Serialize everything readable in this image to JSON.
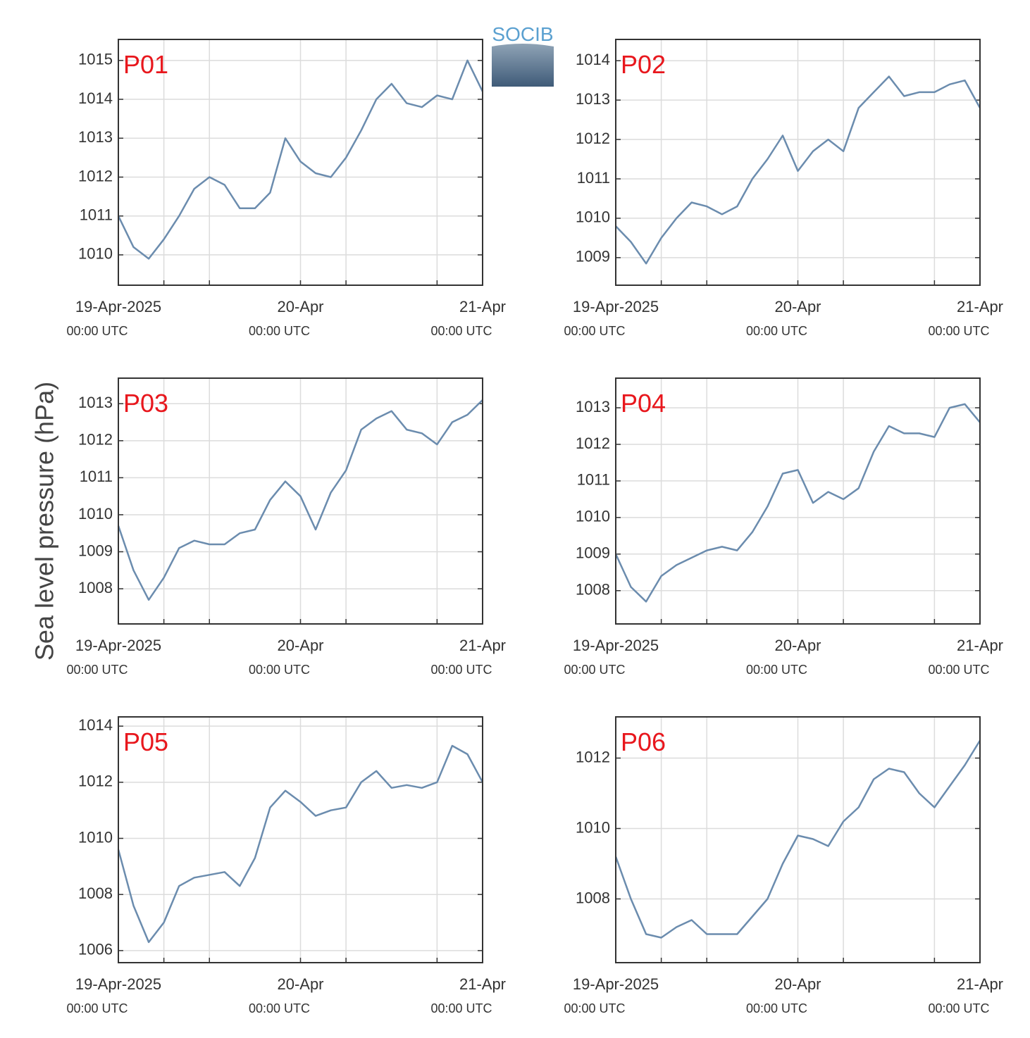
{
  "y_label": "Sea level pressure (hPa)",
  "logo": "SOCIB",
  "chart_data": [
    {
      "type": "line",
      "title": "P01",
      "color": "#6b8cae",
      "grid": true,
      "x": [
        "2025-04-19T00:00",
        "2025-04-19T02:00",
        "2025-04-19T04:00",
        "2025-04-19T06:00",
        "2025-04-19T08:00",
        "2025-04-19T10:00",
        "2025-04-19T12:00",
        "2025-04-19T14:00",
        "2025-04-19T16:00",
        "2025-04-19T18:00",
        "2025-04-19T20:00",
        "2025-04-19T22:00",
        "2025-04-20T00:00",
        "2025-04-20T02:00",
        "2025-04-20T04:00",
        "2025-04-20T06:00",
        "2025-04-20T08:00",
        "2025-04-20T10:00",
        "2025-04-20T12:00",
        "2025-04-20T14:00",
        "2025-04-20T16:00",
        "2025-04-20T18:00",
        "2025-04-20T20:00",
        "2025-04-20T22:00",
        "2025-04-21T00:00"
      ],
      "values": [
        1011.0,
        1010.2,
        1009.9,
        1010.4,
        1011.0,
        1011.7,
        1012.0,
        1011.8,
        1011.2,
        1011.2,
        1011.6,
        1013.0,
        1012.4,
        1012.1,
        1012.0,
        1012.5,
        1013.2,
        1014.0,
        1014.4,
        1013.9,
        1013.8,
        1014.1,
        1014.0,
        1015.0,
        1014.2
      ],
      "xlim": [
        "2025-04-19T00:00",
        "2025-04-21T00:00"
      ],
      "xticks": [
        {
          "value": "2025-04-19T00:00",
          "label": "19-Apr-2025",
          "time_label": "00:00 UTC"
        },
        {
          "value": "2025-04-20T00:00",
          "label": "20-Apr",
          "time_label": "00:00 UTC"
        },
        {
          "value": "2025-04-21T00:00",
          "label": "21-Apr",
          "time_label": "00:00 UTC"
        }
      ],
      "xminor": [
        "2025-04-19T06:00",
        "2025-04-19T12:00",
        "2025-04-20T06:00",
        "2025-04-20T18:00"
      ],
      "ylim": [
        1009.22,
        1015.54
      ],
      "yticks": [
        1010,
        1011,
        1012,
        1013,
        1014,
        1015
      ]
    },
    {
      "type": "line",
      "title": "P02",
      "color": "#6b8cae",
      "grid": true,
      "x": [
        "2025-04-19T00:00",
        "2025-04-19T02:00",
        "2025-04-19T04:00",
        "2025-04-19T06:00",
        "2025-04-19T08:00",
        "2025-04-19T10:00",
        "2025-04-19T12:00",
        "2025-04-19T14:00",
        "2025-04-19T16:00",
        "2025-04-19T18:00",
        "2025-04-19T20:00",
        "2025-04-19T22:00",
        "2025-04-20T00:00",
        "2025-04-20T02:00",
        "2025-04-20T04:00",
        "2025-04-20T06:00",
        "2025-04-20T08:00",
        "2025-04-20T10:00",
        "2025-04-20T12:00",
        "2025-04-20T14:00",
        "2025-04-20T16:00",
        "2025-04-20T18:00",
        "2025-04-20T20:00",
        "2025-04-20T22:00",
        "2025-04-21T00:00"
      ],
      "values": [
        1009.8,
        1009.4,
        1008.85,
        1009.5,
        1010.0,
        1010.4,
        1010.3,
        1010.1,
        1010.3,
        1011.0,
        1011.5,
        1012.1,
        1011.2,
        1011.7,
        1012.0,
        1011.7,
        1012.8,
        1013.2,
        1013.6,
        1013.1,
        1013.2,
        1013.2,
        1013.4,
        1013.5,
        1012.8
      ],
      "xlim": [
        "2025-04-19T00:00",
        "2025-04-21T00:00"
      ],
      "xticks": [
        {
          "value": "2025-04-19T00:00",
          "label": "19-Apr-2025",
          "time_label": "00:00 UTC"
        },
        {
          "value": "2025-04-20T00:00",
          "label": "20-Apr",
          "time_label": "00:00 UTC"
        },
        {
          "value": "2025-04-21T00:00",
          "label": "21-Apr",
          "time_label": "00:00 UTC"
        }
      ],
      "xminor": [
        "2025-04-19T06:00",
        "2025-04-19T12:00",
        "2025-04-20T06:00",
        "2025-04-20T18:00"
      ],
      "ylim": [
        1008.3,
        1014.54
      ],
      "yticks": [
        1009,
        1010,
        1011,
        1012,
        1013,
        1014
      ]
    },
    {
      "type": "line",
      "title": "P03",
      "color": "#6b8cae",
      "grid": true,
      "x": [
        "2025-04-19T00:00",
        "2025-04-19T02:00",
        "2025-04-19T04:00",
        "2025-04-19T06:00",
        "2025-04-19T08:00",
        "2025-04-19T10:00",
        "2025-04-19T12:00",
        "2025-04-19T14:00",
        "2025-04-19T16:00",
        "2025-04-19T18:00",
        "2025-04-19T20:00",
        "2025-04-19T22:00",
        "2025-04-20T00:00",
        "2025-04-20T02:00",
        "2025-04-20T04:00",
        "2025-04-20T06:00",
        "2025-04-20T08:00",
        "2025-04-20T10:00",
        "2025-04-20T12:00",
        "2025-04-20T14:00",
        "2025-04-20T16:00",
        "2025-04-20T18:00",
        "2025-04-20T20:00",
        "2025-04-20T22:00",
        "2025-04-21T00:00"
      ],
      "values": [
        1009.7,
        1008.5,
        1007.7,
        1008.3,
        1009.1,
        1009.3,
        1009.2,
        1009.2,
        1009.5,
        1009.6,
        1010.4,
        1010.9,
        1010.5,
        1009.6,
        1010.6,
        1011.2,
        1012.3,
        1012.6,
        1012.8,
        1012.3,
        1012.2,
        1011.9,
        1012.5,
        1012.7,
        1013.1
      ],
      "xlim": [
        "2025-04-19T00:00",
        "2025-04-21T00:00"
      ],
      "xticks": [
        {
          "value": "2025-04-19T00:00",
          "label": "19-Apr-2025",
          "time_label": "00:00 UTC"
        },
        {
          "value": "2025-04-20T00:00",
          "label": "20-Apr",
          "time_label": "00:00 UTC"
        },
        {
          "value": "2025-04-21T00:00",
          "label": "21-Apr",
          "time_label": "00:00 UTC"
        }
      ],
      "xminor": [
        "2025-04-19T06:00",
        "2025-04-19T12:00",
        "2025-04-20T06:00",
        "2025-04-20T18:00"
      ],
      "ylim": [
        1007.05,
        1013.69
      ],
      "yticks": [
        1008,
        1009,
        1010,
        1011,
        1012,
        1013
      ]
    },
    {
      "type": "line",
      "title": "P04",
      "color": "#6b8cae",
      "grid": true,
      "x": [
        "2025-04-19T00:00",
        "2025-04-19T02:00",
        "2025-04-19T04:00",
        "2025-04-19T06:00",
        "2025-04-19T08:00",
        "2025-04-19T10:00",
        "2025-04-19T12:00",
        "2025-04-19T14:00",
        "2025-04-19T16:00",
        "2025-04-19T18:00",
        "2025-04-19T20:00",
        "2025-04-19T22:00",
        "2025-04-20T00:00",
        "2025-04-20T02:00",
        "2025-04-20T04:00",
        "2025-04-20T06:00",
        "2025-04-20T08:00",
        "2025-04-20T10:00",
        "2025-04-20T12:00",
        "2025-04-20T14:00",
        "2025-04-20T16:00",
        "2025-04-20T18:00",
        "2025-04-20T20:00",
        "2025-04-20T22:00",
        "2025-04-21T00:00"
      ],
      "values": [
        1009.0,
        1008.1,
        1007.7,
        1008.4,
        1008.7,
        1008.9,
        1009.1,
        1009.2,
        1009.1,
        1009.6,
        1010.3,
        1011.2,
        1011.3,
        1010.4,
        1010.7,
        1010.5,
        1010.8,
        1011.8,
        1012.5,
        1012.3,
        1012.3,
        1012.2,
        1013.0,
        1013.1,
        1012.6
      ],
      "xlim": [
        "2025-04-19T00:00",
        "2025-04-21T00:00"
      ],
      "xticks": [
        {
          "value": "2025-04-19T00:00",
          "label": "19-Apr-2025",
          "time_label": "00:00 UTC"
        },
        {
          "value": "2025-04-20T00:00",
          "label": "20-Apr",
          "time_label": "00:00 UTC"
        },
        {
          "value": "2025-04-21T00:00",
          "label": "21-Apr",
          "time_label": "00:00 UTC"
        }
      ],
      "xminor": [
        "2025-04-19T06:00",
        "2025-04-19T12:00",
        "2025-04-20T06:00",
        "2025-04-20T18:00"
      ],
      "ylim": [
        1007.09,
        1013.81
      ],
      "yticks": [
        1008,
        1009,
        1010,
        1011,
        1012,
        1013
      ]
    },
    {
      "type": "line",
      "title": "P05",
      "color": "#6b8cae",
      "grid": true,
      "x": [
        "2025-04-19T00:00",
        "2025-04-19T02:00",
        "2025-04-19T04:00",
        "2025-04-19T06:00",
        "2025-04-19T08:00",
        "2025-04-19T10:00",
        "2025-04-19T12:00",
        "2025-04-19T14:00",
        "2025-04-19T16:00",
        "2025-04-19T18:00",
        "2025-04-19T20:00",
        "2025-04-19T22:00",
        "2025-04-20T00:00",
        "2025-04-20T02:00",
        "2025-04-20T04:00",
        "2025-04-20T06:00",
        "2025-04-20T08:00",
        "2025-04-20T10:00",
        "2025-04-20T12:00",
        "2025-04-20T14:00",
        "2025-04-20T16:00",
        "2025-04-20T18:00",
        "2025-04-20T20:00",
        "2025-04-20T22:00",
        "2025-04-21T00:00"
      ],
      "values": [
        1009.6,
        1007.6,
        1006.3,
        1007.0,
        1008.3,
        1008.6,
        1008.7,
        1008.8,
        1008.3,
        1009.3,
        1011.1,
        1011.7,
        1011.3,
        1010.8,
        1011.0,
        1011.1,
        1012.0,
        1012.4,
        1011.8,
        1011.9,
        1011.8,
        1012.0,
        1013.3,
        1013.0,
        1012.0
      ],
      "xlim": [
        "2025-04-19T00:00",
        "2025-04-21T00:00"
      ],
      "xticks": [
        {
          "value": "2025-04-19T00:00",
          "label": "19-Apr-2025",
          "time_label": "00:00 UTC"
        },
        {
          "value": "2025-04-20T00:00",
          "label": "20-Apr",
          "time_label": "00:00 UTC"
        },
        {
          "value": "2025-04-21T00:00",
          "label": "21-Apr",
          "time_label": "00:00 UTC"
        }
      ],
      "xminor": [
        "2025-04-19T06:00",
        "2025-04-19T12:00",
        "2025-04-20T06:00",
        "2025-04-20T18:00"
      ],
      "ylim": [
        1005.57,
        1014.33
      ],
      "yticks": [
        1006,
        1008,
        1010,
        1012,
        1014
      ]
    },
    {
      "type": "line",
      "title": "P06",
      "color": "#6b8cae",
      "grid": true,
      "x": [
        "2025-04-19T00:00",
        "2025-04-19T02:00",
        "2025-04-19T04:00",
        "2025-04-19T06:00",
        "2025-04-19T08:00",
        "2025-04-19T10:00",
        "2025-04-19T12:00",
        "2025-04-19T14:00",
        "2025-04-19T16:00",
        "2025-04-19T18:00",
        "2025-04-19T20:00",
        "2025-04-19T22:00",
        "2025-04-20T00:00",
        "2025-04-20T02:00",
        "2025-04-20T04:00",
        "2025-04-20T06:00",
        "2025-04-20T08:00",
        "2025-04-20T10:00",
        "2025-04-20T12:00",
        "2025-04-20T14:00",
        "2025-04-20T16:00",
        "2025-04-20T18:00",
        "2025-04-20T20:00",
        "2025-04-20T22:00",
        "2025-04-21T00:00"
      ],
      "values": [
        1009.2,
        1008.0,
        1007.0,
        1006.9,
        1007.2,
        1007.4,
        1007.0,
        1007.0,
        1007.0,
        1007.5,
        1008.0,
        1009.0,
        1009.8,
        1009.7,
        1009.5,
        1010.2,
        1010.6,
        1011.4,
        1011.7,
        1011.6,
        1011.0,
        1010.6,
        1011.2,
        1011.8,
        1012.5
      ],
      "xlim": [
        "2025-04-19T00:00",
        "2025-04-21T00:00"
      ],
      "xticks": [
        {
          "value": "2025-04-19T00:00",
          "label": "19-Apr-2025",
          "time_label": "00:00 UTC"
        },
        {
          "value": "2025-04-20T00:00",
          "label": "20-Apr",
          "time_label": "00:00 UTC"
        },
        {
          "value": "2025-04-21T00:00",
          "label": "21-Apr",
          "time_label": "00:00 UTC"
        }
      ],
      "xminor": [
        "2025-04-19T06:00",
        "2025-04-19T12:00",
        "2025-04-20T06:00",
        "2025-04-20T18:00"
      ],
      "ylim": [
        1006.19,
        1013.17
      ],
      "yticks": [
        1008,
        1010,
        1012
      ]
    }
  ]
}
